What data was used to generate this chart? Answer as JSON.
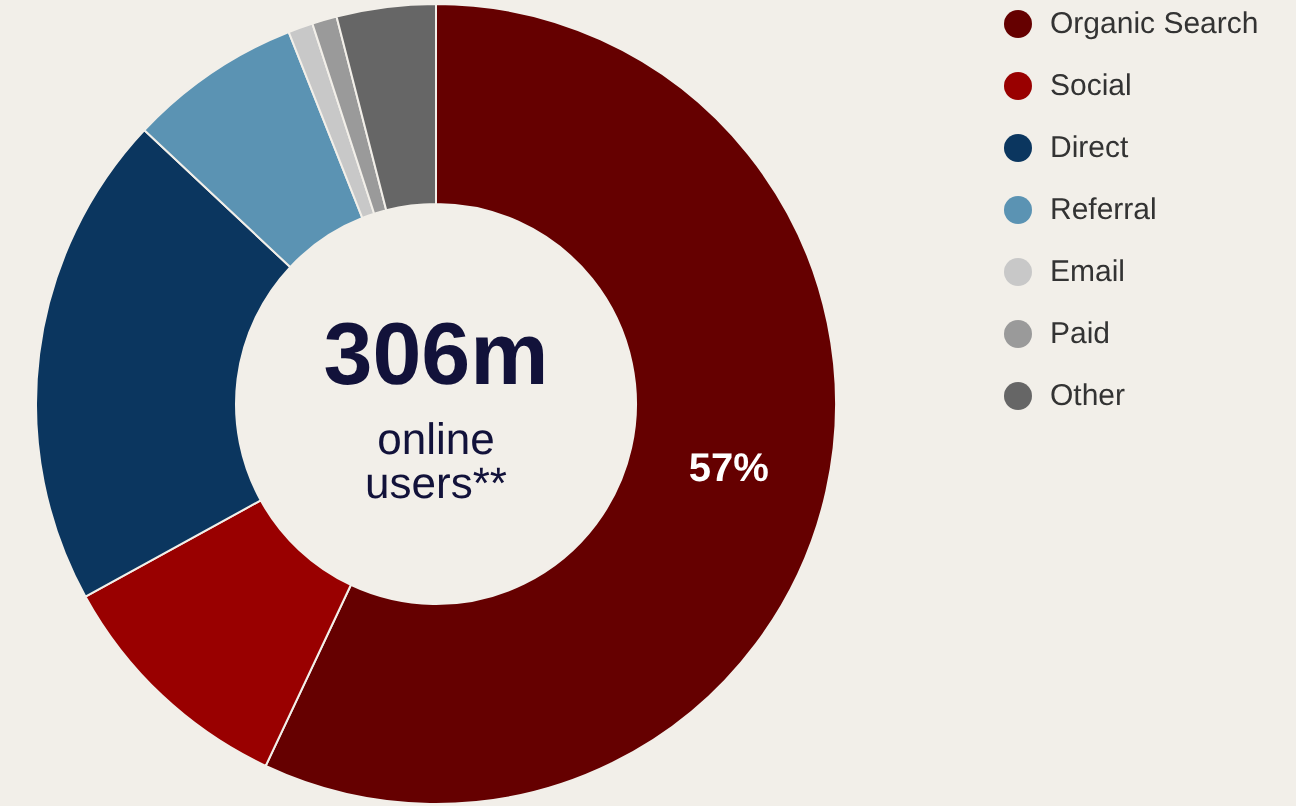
{
  "chart_data": {
    "type": "donut",
    "categories": [
      "Organic Search",
      "Social",
      "Direct",
      "Referral",
      "Email",
      "Paid",
      "Other"
    ],
    "values": [
      57,
      10,
      20,
      7,
      1,
      1,
      4
    ],
    "colors": [
      "#650000",
      "#990000",
      "#0b365f",
      "#5b93b3",
      "#c8c8c8",
      "#9a9a9a",
      "#666666"
    ],
    "value_labels": [
      "57%",
      null,
      null,
      null,
      null,
      null,
      null
    ],
    "annotations": [
      "306m",
      "online users**"
    ],
    "legend": "top right"
  }
}
